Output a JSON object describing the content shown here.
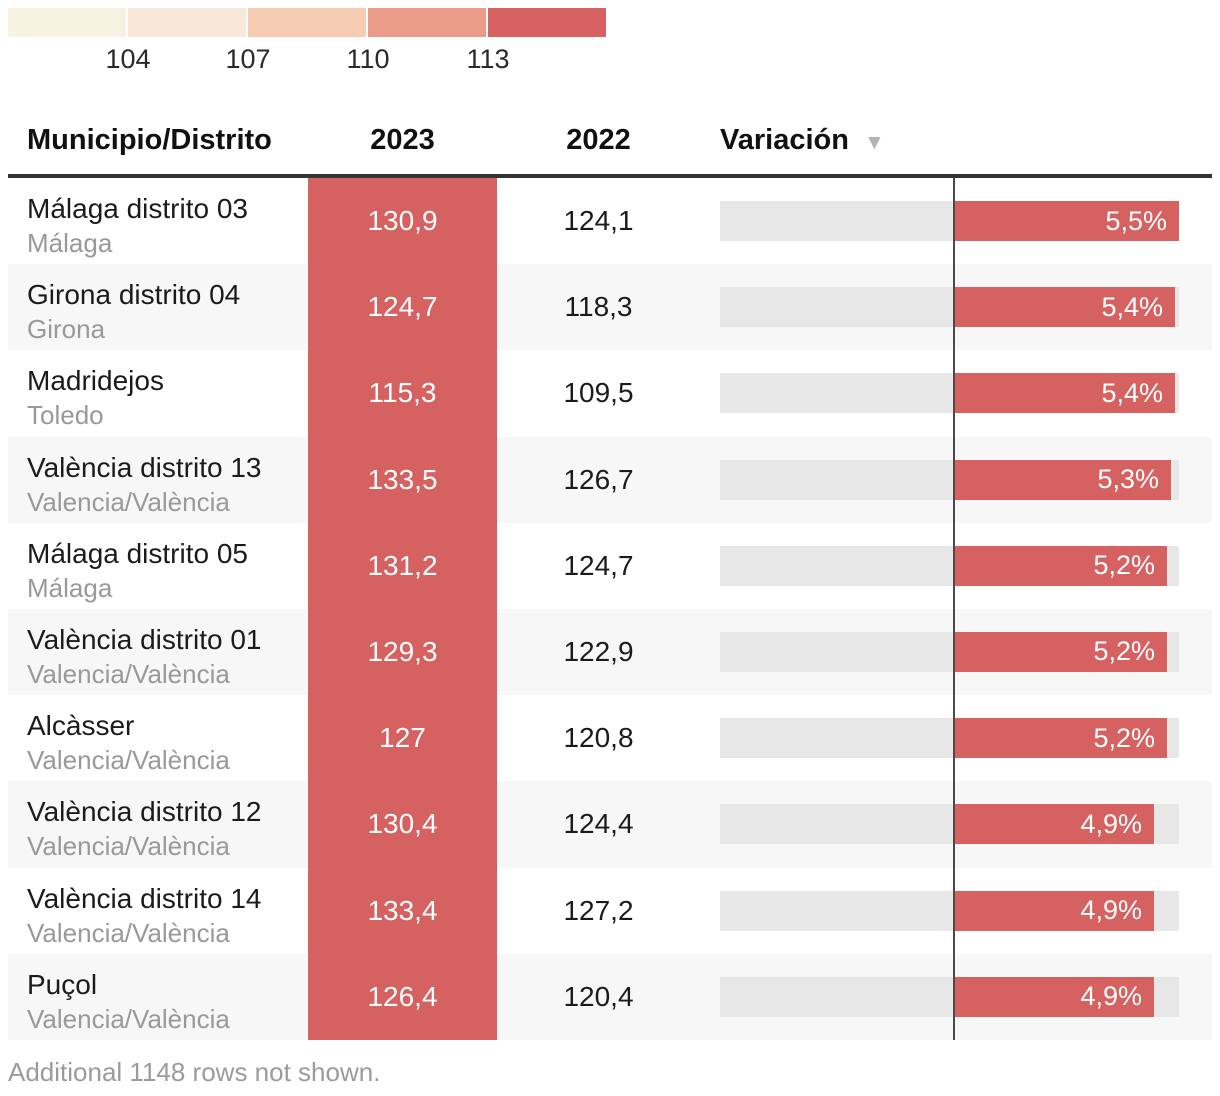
{
  "legend": {
    "colors": [
      "#f7f3e3",
      "#f8e8d9",
      "#f6ccb3",
      "#ea9b89",
      "#d66161"
    ],
    "labels": [
      "104",
      "107",
      "110",
      "113"
    ]
  },
  "table": {
    "headers": {
      "name": "Municipio/Distrito",
      "y2023": "2023",
      "y2022": "2022",
      "variation": "Variación"
    },
    "sort_icon": "▼",
    "rows": [
      {
        "municipality": "Málaga distrito 03",
        "province": "Málaga",
        "v2023": "130,9",
        "v2022": "124,1",
        "variation_label": "5,5%",
        "variation": 5.5
      },
      {
        "municipality": "Girona distrito 04",
        "province": "Girona",
        "v2023": "124,7",
        "v2022": "118,3",
        "variation_label": "5,4%",
        "variation": 5.4
      },
      {
        "municipality": "Madridejos",
        "province": "Toledo",
        "v2023": "115,3",
        "v2022": "109,5",
        "variation_label": "5,4%",
        "variation": 5.4
      },
      {
        "municipality": "València distrito 13",
        "province": "Valencia/València",
        "v2023": "133,5",
        "v2022": "126,7",
        "variation_label": "5,3%",
        "variation": 5.3
      },
      {
        "municipality": "Málaga distrito 05",
        "province": "Málaga",
        "v2023": "131,2",
        "v2022": "124,7",
        "variation_label": "5,2%",
        "variation": 5.2
      },
      {
        "municipality": "València distrito 01",
        "province": "Valencia/València",
        "v2023": "129,3",
        "v2022": "122,9",
        "variation_label": "5,2%",
        "variation": 5.2
      },
      {
        "municipality": "Alcàsser",
        "province": "Valencia/València",
        "v2023": "127",
        "v2022": "120,8",
        "variation_label": "5,2%",
        "variation": 5.2
      },
      {
        "municipality": "València distrito 12",
        "province": "Valencia/València",
        "v2023": "130,4",
        "v2022": "124,4",
        "variation_label": "4,9%",
        "variation": 4.9
      },
      {
        "municipality": "València distrito 14",
        "province": "Valencia/València",
        "v2023": "133,4",
        "v2022": "127,2",
        "variation_label": "4,9%",
        "variation": 4.9
      },
      {
        "municipality": "Puçol",
        "province": "Valencia/València",
        "v2023": "126,4",
        "v2022": "120,4",
        "variation_label": "4,9%",
        "variation": 4.9
      }
    ]
  },
  "footer": {
    "note": "Additional 1148 rows not shown."
  },
  "colors": {
    "accent_red": "#d66161",
    "bar_track": "#e7e7e7",
    "row_alt": "#f7f7f7",
    "zero_line": "#4a4a4a",
    "header_rule": "#333333"
  },
  "chart_data": {
    "type": "table",
    "columns": [
      "Municipio/Distrito",
      "2023",
      "2022",
      "Variación"
    ],
    "rows": [
      {
        "name": "Málaga distrito 03",
        "region": "Málaga",
        "y2023": 130.9,
        "y2022": 124.1,
        "variation_pct": 5.5
      },
      {
        "name": "Girona distrito 04",
        "region": "Girona",
        "y2023": 124.7,
        "y2022": 118.3,
        "variation_pct": 5.4
      },
      {
        "name": "Madridejos",
        "region": "Toledo",
        "y2023": 115.3,
        "y2022": 109.5,
        "variation_pct": 5.4
      },
      {
        "name": "València distrito 13",
        "region": "Valencia/València",
        "y2023": 133.5,
        "y2022": 126.7,
        "variation_pct": 5.3
      },
      {
        "name": "Málaga distrito 05",
        "region": "Málaga",
        "y2023": 131.2,
        "y2022": 124.7,
        "variation_pct": 5.2
      },
      {
        "name": "València distrito 01",
        "region": "Valencia/València",
        "y2023": 129.3,
        "y2022": 122.9,
        "variation_pct": 5.2
      },
      {
        "name": "Alcàsser",
        "region": "Valencia/València",
        "y2023": 127.0,
        "y2022": 120.8,
        "variation_pct": 5.2
      },
      {
        "name": "València distrito 12",
        "region": "Valencia/València",
        "y2023": 130.4,
        "y2022": 124.4,
        "variation_pct": 4.9
      },
      {
        "name": "València distrito 14",
        "region": "Valencia/València",
        "y2023": 133.4,
        "y2022": 127.2,
        "variation_pct": 4.9
      },
      {
        "name": "Puçol",
        "region": "Valencia/València",
        "y2023": 126.4,
        "y2022": 120.4,
        "variation_pct": 4.9
      }
    ],
    "embedded_bar": {
      "column": "Variación",
      "unit": "%",
      "values": [
        5.5,
        5.4,
        5.4,
        5.3,
        5.2,
        5.2,
        5.2,
        4.9,
        4.9,
        4.9
      ],
      "baseline": 0,
      "sorted": "descending"
    },
    "color_scale": {
      "applies_to": "2023",
      "ticks": [
        104,
        107,
        110,
        113
      ],
      "colors": [
        "#f7f3e3",
        "#f8e8d9",
        "#f6ccb3",
        "#ea9b89",
        "#d66161"
      ]
    },
    "note": "Additional 1148 rows not shown."
  }
}
